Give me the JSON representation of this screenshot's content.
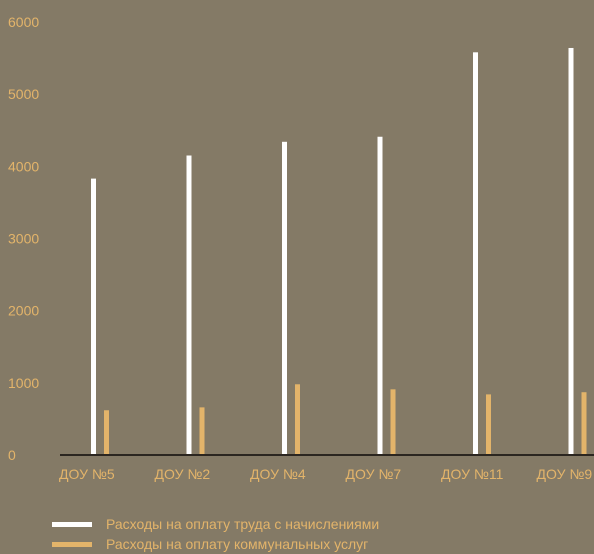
{
  "colors": {
    "background": "#847a66",
    "label": "#e3b46a",
    "axis": "#2b2620",
    "series1": "#ffffff",
    "series2": "#e3b46a"
  },
  "chart_data": {
    "type": "bar",
    "categories": [
      "ДОУ №5",
      "ДОУ №2",
      "ДОУ №4",
      "ДОУ №7",
      "ДОУ №11",
      "ДОУ №9"
    ],
    "series": [
      {
        "name": "Расходы на оплату труда с начислениями",
        "values": [
          3830,
          4150,
          4340,
          4410,
          5580,
          5640
        ]
      },
      {
        "name": "Расходы на оплату коммунальных услуг",
        "values": [
          620,
          660,
          980,
          910,
          840,
          870
        ]
      }
    ],
    "ylim": [
      0,
      6000
    ],
    "yticks": [
      0,
      1000,
      2000,
      3000,
      4000,
      5000,
      6000
    ],
    "grid": false,
    "legend_position": "bottom-left"
  }
}
